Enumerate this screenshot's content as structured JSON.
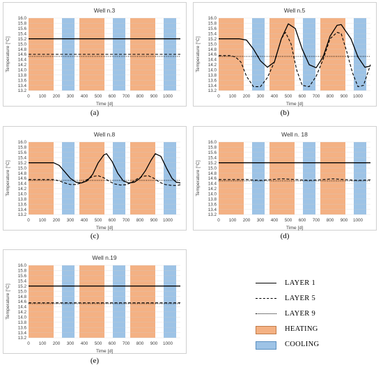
{
  "colors": {
    "heating": "#f4b183",
    "cooling": "#9dc3e6",
    "line": "#000000",
    "grid": "#d9d9d9"
  },
  "legend": {
    "layer1": "LAYER 1",
    "layer5": "LAYER 5",
    "layer9": "LAYER 9",
    "heating": "HEATING",
    "cooling": "COOLING"
  },
  "chart_data": [
    {
      "type": "line",
      "title": "Well n.3",
      "panel_label": "(a)",
      "xlabel": "Time [d]",
      "ylabel": "Temperature [°C]",
      "xlim": [
        0,
        1090
      ],
      "ylim": [
        13.2,
        16.0
      ],
      "xticks": [
        0,
        100,
        200,
        300,
        400,
        500,
        600,
        700,
        800,
        900,
        1000
      ],
      "yticks": [
        13.2,
        13.4,
        13.6,
        13.8,
        14.0,
        14.2,
        14.4,
        14.6,
        14.8,
        15.0,
        15.2,
        15.4,
        15.6,
        15.8,
        16.0
      ],
      "heating_bands": [
        [
          0,
          180
        ],
        [
          365,
          545
        ],
        [
          730,
          910
        ]
      ],
      "cooling_bands": [
        [
          240,
          330
        ],
        [
          605,
          695
        ],
        [
          970,
          1060
        ]
      ],
      "series": [
        {
          "name": "LAYER 1",
          "dash": "solid",
          "x": [
            0,
            1090
          ],
          "y": [
            15.2,
            15.2
          ]
        },
        {
          "name": "LAYER 5",
          "dash": "dashed",
          "x": [
            0,
            1090
          ],
          "y": [
            14.6,
            14.6
          ]
        },
        {
          "name": "LAYER 9",
          "dash": "dotted",
          "x": [
            0,
            1090
          ],
          "y": [
            14.52,
            14.52
          ]
        }
      ]
    },
    {
      "type": "line",
      "title": "Well n.5",
      "panel_label": "(b)",
      "xlabel": "Time [d]",
      "ylabel": "Temperature [°C]",
      "xlim": [
        0,
        1090
      ],
      "ylim": [
        13.2,
        16.0
      ],
      "xticks": [
        0,
        100,
        200,
        300,
        400,
        500,
        600,
        700,
        800,
        900,
        1000
      ],
      "yticks": [
        13.2,
        13.4,
        13.6,
        13.8,
        14.0,
        14.2,
        14.4,
        14.6,
        14.8,
        15.0,
        15.2,
        15.4,
        15.6,
        15.8,
        16.0
      ],
      "heating_bands": [
        [
          0,
          180
        ],
        [
          365,
          545
        ],
        [
          730,
          910
        ]
      ],
      "cooling_bands": [
        [
          240,
          330
        ],
        [
          605,
          695
        ],
        [
          970,
          1060
        ]
      ],
      "series": [
        {
          "name": "LAYER 1",
          "dash": "solid",
          "x": [
            0,
            150,
            200,
            250,
            300,
            350,
            400,
            450,
            500,
            550,
            600,
            650,
            700,
            750,
            800,
            850,
            880,
            950,
            1000,
            1050,
            1090
          ],
          "y": [
            15.2,
            15.2,
            15.15,
            14.8,
            14.35,
            14.1,
            14.3,
            15.2,
            15.78,
            15.6,
            14.8,
            14.2,
            14.08,
            14.5,
            15.3,
            15.72,
            15.75,
            15.2,
            14.5,
            14.1,
            14.15
          ]
        },
        {
          "name": "LAYER 5",
          "dash": "dashed",
          "x": [
            0,
            80,
            120,
            160,
            200,
            250,
            300,
            350,
            400,
            450,
            480,
            520,
            560,
            600,
            650,
            700,
            750,
            800,
            850,
            880,
            920,
            960,
            1000,
            1040,
            1090
          ],
          "y": [
            14.55,
            14.55,
            14.5,
            14.3,
            13.75,
            13.35,
            13.35,
            13.7,
            14.3,
            15.2,
            15.45,
            15.0,
            14.0,
            13.4,
            13.35,
            13.75,
            14.4,
            15.2,
            15.45,
            15.4,
            14.7,
            13.9,
            13.35,
            13.4,
            14.2
          ]
        },
        {
          "name": "LAYER 9",
          "dash": "dotted",
          "x": [
            0,
            1090
          ],
          "y": [
            14.52,
            14.52
          ]
        }
      ]
    },
    {
      "type": "line",
      "title": "Well n.8",
      "panel_label": "(c)",
      "xlabel": "Time [d]",
      "ylabel": "Temperature [°C]",
      "xlim": [
        0,
        1090
      ],
      "ylim": [
        13.2,
        16.0
      ],
      "xticks": [
        0,
        100,
        200,
        300,
        400,
        500,
        600,
        700,
        800,
        900,
        1000
      ],
      "yticks": [
        13.2,
        13.4,
        13.6,
        13.8,
        14.0,
        14.2,
        14.4,
        14.6,
        14.8,
        15.0,
        15.2,
        15.4,
        15.6,
        15.8,
        16.0
      ],
      "heating_bands": [
        [
          0,
          180
        ],
        [
          365,
          545
        ],
        [
          730,
          910
        ]
      ],
      "cooling_bands": [
        [
          240,
          330
        ],
        [
          605,
          695
        ],
        [
          970,
          1060
        ]
      ],
      "series": [
        {
          "name": "LAYER 1",
          "dash": "solid",
          "x": [
            0,
            180,
            220,
            260,
            300,
            340,
            380,
            420,
            460,
            500,
            540,
            560,
            600,
            640,
            680,
            720,
            760,
            800,
            840,
            880,
            910,
            950,
            990,
            1030,
            1060,
            1090
          ],
          "y": [
            15.2,
            15.2,
            15.1,
            14.85,
            14.6,
            14.45,
            14.42,
            14.5,
            14.75,
            15.2,
            15.5,
            15.55,
            15.25,
            14.8,
            14.5,
            14.42,
            14.45,
            14.6,
            14.9,
            15.3,
            15.55,
            15.45,
            15.0,
            14.6,
            14.45,
            14.42
          ]
        },
        {
          "name": "LAYER 5",
          "dash": "dashed",
          "x": [
            0,
            180,
            220,
            260,
            300,
            340,
            380,
            420,
            460,
            500,
            540,
            580,
            620,
            660,
            700,
            740,
            780,
            820,
            860,
            900,
            940,
            980,
            1020,
            1060,
            1090
          ],
          "y": [
            14.55,
            14.55,
            14.5,
            14.42,
            14.36,
            14.36,
            14.42,
            14.55,
            14.67,
            14.7,
            14.62,
            14.48,
            14.38,
            14.34,
            14.35,
            14.44,
            14.58,
            14.68,
            14.7,
            14.6,
            14.45,
            14.36,
            14.33,
            14.32,
            14.35
          ]
        },
        {
          "name": "LAYER 9",
          "dash": "dotted",
          "x": [
            0,
            1090
          ],
          "y": [
            14.52,
            14.52
          ]
        }
      ]
    },
    {
      "type": "line",
      "title": "Well n. 18",
      "panel_label": "(d)",
      "xlabel": "Time [d]",
      "ylabel": "Temperature [°C]",
      "xlim": [
        0,
        1090
      ],
      "ylim": [
        13.2,
        16.0
      ],
      "xticks": [
        0,
        100,
        200,
        300,
        400,
        500,
        600,
        700,
        800,
        900,
        1000
      ],
      "yticks": [
        13.2,
        13.4,
        13.6,
        13.8,
        14.0,
        14.2,
        14.4,
        14.6,
        14.8,
        15.0,
        15.2,
        15.4,
        15.6,
        15.8,
        16.0
      ],
      "heating_bands": [
        [
          0,
          180
        ],
        [
          365,
          545
        ],
        [
          730,
          910
        ]
      ],
      "cooling_bands": [
        [
          240,
          330
        ],
        [
          605,
          695
        ],
        [
          970,
          1060
        ]
      ],
      "series": [
        {
          "name": "LAYER 1",
          "dash": "solid",
          "x": [
            0,
            1090
          ],
          "y": [
            15.2,
            15.2
          ]
        },
        {
          "name": "LAYER 5",
          "dash": "dashed",
          "x": [
            0,
            200,
            300,
            400,
            460,
            550,
            650,
            750,
            820,
            900,
            1000,
            1090
          ],
          "y": [
            14.55,
            14.55,
            14.52,
            14.56,
            14.58,
            14.55,
            14.52,
            14.55,
            14.58,
            14.55,
            14.52,
            14.54
          ]
        },
        {
          "name": "LAYER 9",
          "dash": "dotted",
          "x": [
            0,
            1090
          ],
          "y": [
            14.5,
            14.5
          ]
        }
      ]
    },
    {
      "type": "line",
      "title": "Well n.19",
      "panel_label": "(e)",
      "xlabel": "Time [d]",
      "ylabel": "Temperature [°C]",
      "xlim": [
        0,
        1090
      ],
      "ylim": [
        13.2,
        16.0
      ],
      "xticks": [
        0,
        100,
        200,
        300,
        400,
        500,
        600,
        700,
        800,
        900,
        1000
      ],
      "yticks": [
        13.2,
        13.4,
        13.6,
        13.8,
        14.0,
        14.2,
        14.4,
        14.6,
        14.8,
        15.0,
        15.2,
        15.4,
        15.6,
        15.8,
        16.0
      ],
      "heating_bands": [
        [
          0,
          180
        ],
        [
          365,
          545
        ],
        [
          730,
          910
        ]
      ],
      "cooling_bands": [
        [
          240,
          330
        ],
        [
          605,
          695
        ],
        [
          970,
          1060
        ]
      ],
      "series": [
        {
          "name": "LAYER 1",
          "dash": "solid",
          "x": [
            0,
            1090
          ],
          "y": [
            15.2,
            15.2
          ]
        },
        {
          "name": "LAYER 5",
          "dash": "dashed",
          "x": [
            0,
            1090
          ],
          "y": [
            14.55,
            14.55
          ]
        },
        {
          "name": "LAYER 9",
          "dash": "dotted",
          "x": [
            0,
            1090
          ],
          "y": [
            14.52,
            14.52
          ]
        }
      ]
    }
  ]
}
